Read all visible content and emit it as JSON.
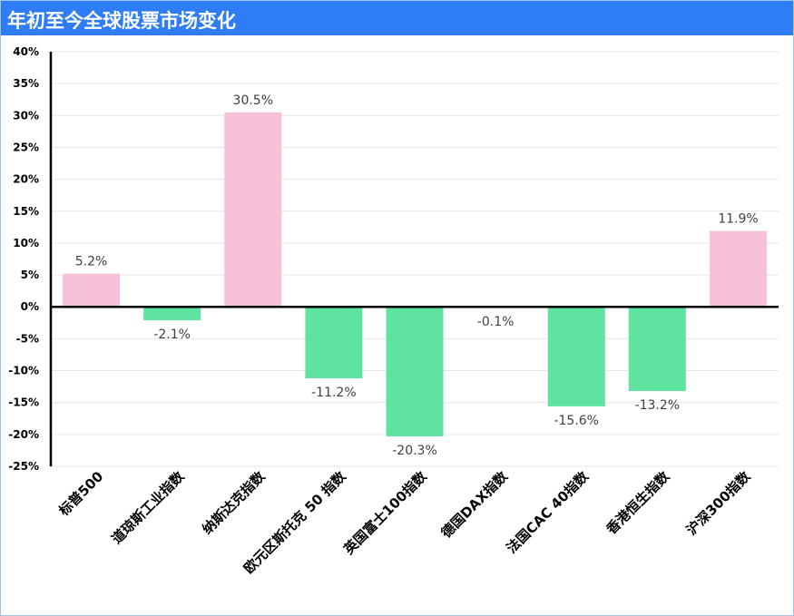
{
  "title": "年初至今全球股票市场变化",
  "colors": {
    "header_bg": "#2e7cf6",
    "positive": "#f7c2d9",
    "negative": "#5fe3a1",
    "axis": "#000000",
    "grid": "#e6e6e6"
  },
  "chart_data": {
    "type": "bar",
    "title": "年初至今全球股票市场变化",
    "categories": [
      "标普500",
      "道琼斯工业指数",
      "纳斯达克指数",
      "欧元区斯托克 50 指数",
      "英国富士100指数",
      "德国DAX指数",
      "法国CAC 40指数",
      "香港恒生指数",
      "沪深300指数"
    ],
    "values": [
      5.2,
      -2.1,
      30.5,
      -11.2,
      -20.3,
      -0.1,
      -15.6,
      -13.2,
      11.9
    ],
    "data_labels": [
      "5.2%",
      "-2.1%",
      "30.5%",
      "-11.2%",
      "-20.3%",
      "-0.1%",
      "-15.6%",
      "-13.2%",
      "11.9%"
    ],
    "ylim": [
      -25,
      40
    ],
    "y_ticks": [
      40,
      35,
      30,
      25,
      20,
      15,
      10,
      5,
      0,
      -5,
      -10,
      -15,
      -20,
      -25
    ],
    "y_tick_labels": [
      "40%",
      "35%",
      "30%",
      "25%",
      "20%",
      "15%",
      "10%",
      "5%",
      "0%",
      "-5%",
      "-10%",
      "-15%",
      "-20%",
      "-25%"
    ],
    "xlabel": "",
    "ylabel": "",
    "grid": true,
    "legend": "none"
  }
}
